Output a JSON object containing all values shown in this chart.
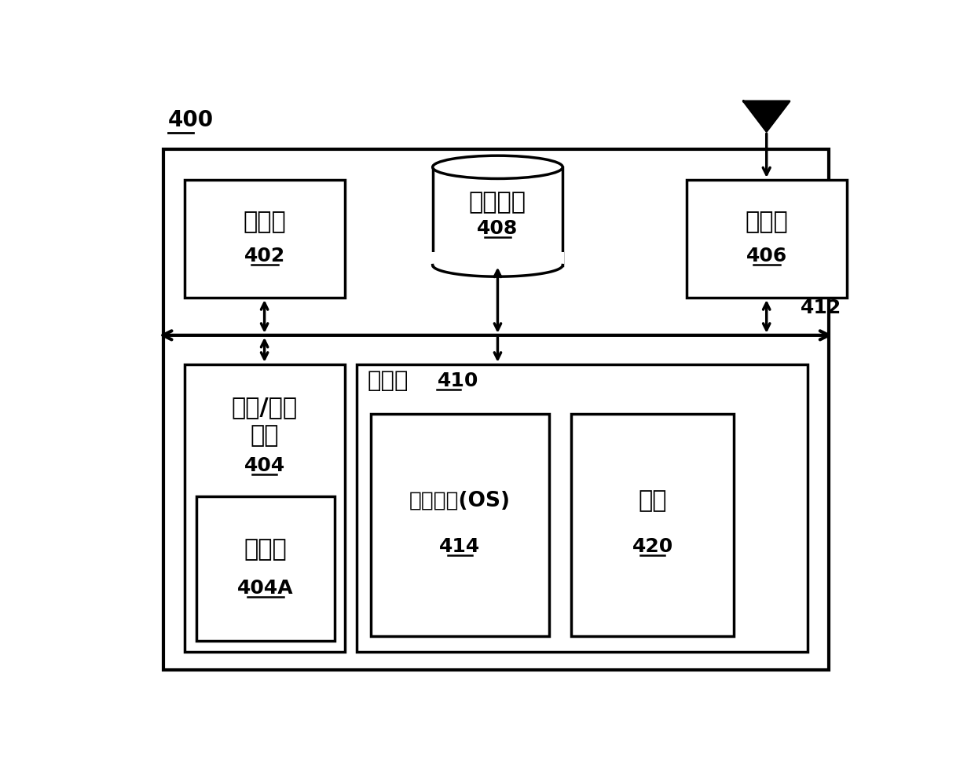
{
  "bg_color": "#ffffff",
  "border_color": "#000000",
  "box_fill": "#ffffff",
  "label_400": "400",
  "label_402": "402",
  "label_404": "404",
  "label_404A": "404A",
  "label_406": "406",
  "label_408": "408",
  "label_410": "410",
  "label_412": "412",
  "label_414": "414",
  "label_420": "420",
  "text_processor": "处理器",
  "text_io": "输入/输出\n接口",
  "text_display": "显示屏",
  "text_radio": "无线电",
  "text_storage_data": "存储数据",
  "text_memory": "存储器",
  "text_os": "操作系统(OS)",
  "text_program": "程序",
  "font_size_main": 22,
  "font_size_label": 18,
  "font_size_small": 16
}
